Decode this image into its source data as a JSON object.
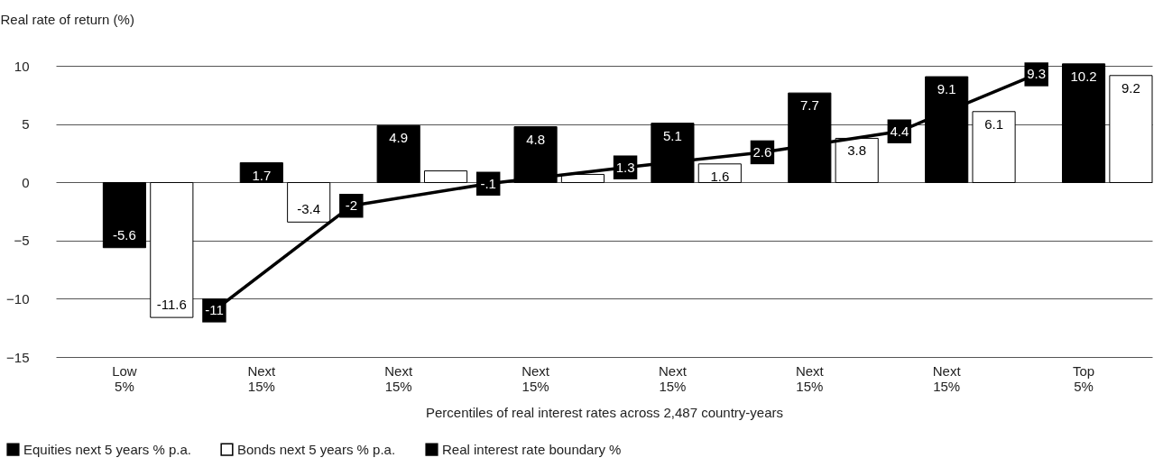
{
  "chart_data": {
    "type": "bar",
    "ylabel": "Real rate of return (%)",
    "xlabel": "Percentiles of real interest rates across 2,487 country-years",
    "categories": [
      "Low 5%",
      "Next 15%",
      "Next 15%",
      "Next 15%",
      "Next 15%",
      "Next 15%",
      "Next 15%",
      "Top 5%"
    ],
    "series": [
      {
        "name": "Equities next 5 years % p.a.",
        "color": "#000000",
        "values": [
          -5.6,
          1.7,
          4.9,
          4.8,
          5.1,
          7.7,
          9.1,
          10.2
        ],
        "value_labels": [
          "-5.6",
          "1.7",
          "4.9",
          "4.8",
          "5.1",
          "7.7",
          "9.1",
          "10.2"
        ]
      },
      {
        "name": "Bonds next 5 years % p.a.",
        "color": "#ffffff",
        "values": [
          -11.6,
          -3.4,
          1.0,
          0.7,
          1.6,
          3.8,
          6.1,
          9.2
        ],
        "value_labels": [
          "-11.6",
          "-3.4",
          null,
          null,
          "1.6",
          "3.8",
          "6.1",
          "9.2"
        ]
      },
      {
        "name": "Real interest rate boundary %",
        "type": "line",
        "color": "#000000",
        "values": [
          null,
          -11,
          -2,
          -0.1,
          1.3,
          2.6,
          4.4,
          9.3
        ],
        "value_labels": [
          null,
          "-11",
          "-2",
          "-.1",
          "1.3",
          "2.6",
          "4.4",
          "9.3"
        ]
      }
    ],
    "ylim": [
      -15,
      10.5
    ],
    "yticks": [
      -15,
      -10,
      -5,
      0,
      5,
      10
    ],
    "grid": "y",
    "legend": "bottom left",
    "marker": "square",
    "line_style": "solid"
  }
}
